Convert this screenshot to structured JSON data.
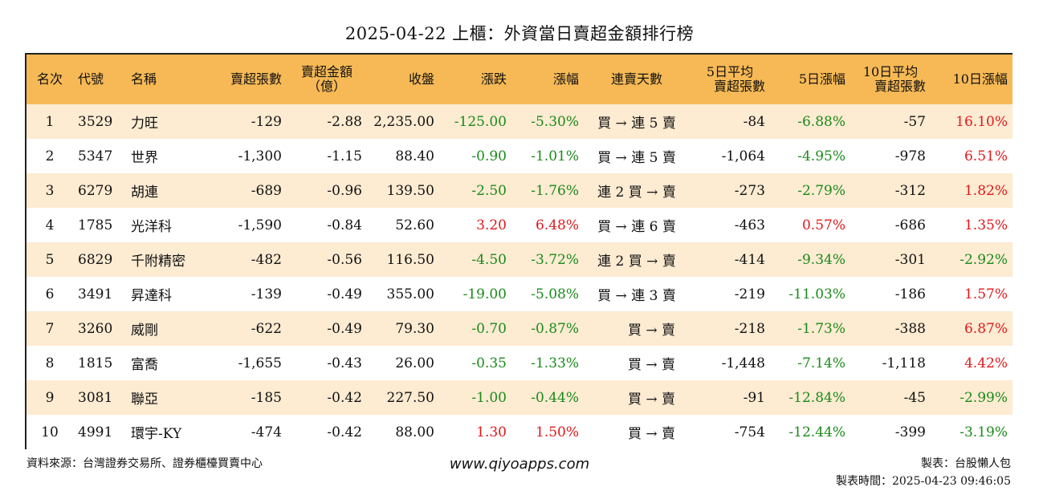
{
  "title": "2025-04-22 上櫃：外資當日賣超金額排行榜",
  "headers": {
    "rank": "名次",
    "code": "代號",
    "name": "名稱",
    "sell_lots": "賣超張數",
    "sell_amt_1": "賣超金額",
    "sell_amt_2": "（億）",
    "close": "收盤",
    "change": "漲跌",
    "pct": "漲幅",
    "streak": "連賣天數",
    "avg5_1": "5日平均",
    "avg5_2": "賣超張數",
    "pct5": "5日漲幅",
    "avg10_1": "10日平均",
    "avg10_2": "賣超張數",
    "pct10": "10日漲幅"
  },
  "rows": [
    {
      "rank": "1",
      "code": "3529",
      "name": "力旺",
      "sell_lots": "-129",
      "sell_amt": "-2.88",
      "close": "2,235.00",
      "change": "-125.00",
      "pct": "-5.30%",
      "streak": "買 → 連 5 賣",
      "avg5": "-84",
      "pct5": "-6.88%",
      "avg10": "-57",
      "pct10": "16.10%"
    },
    {
      "rank": "2",
      "code": "5347",
      "name": "世界",
      "sell_lots": "-1,300",
      "sell_amt": "-1.15",
      "close": "88.40",
      "change": "-0.90",
      "pct": "-1.01%",
      "streak": "買 → 連 5 賣",
      "avg5": "-1,064",
      "pct5": "-4.95%",
      "avg10": "-978",
      "pct10": "6.51%"
    },
    {
      "rank": "3",
      "code": "6279",
      "name": "胡連",
      "sell_lots": "-689",
      "sell_amt": "-0.96",
      "close": "139.50",
      "change": "-2.50",
      "pct": "-1.76%",
      "streak": "連 2 買 → 賣",
      "avg5": "-273",
      "pct5": "-2.79%",
      "avg10": "-312",
      "pct10": "1.82%"
    },
    {
      "rank": "4",
      "code": "1785",
      "name": "光洋科",
      "sell_lots": "-1,590",
      "sell_amt": "-0.84",
      "close": "52.60",
      "change": "3.20",
      "pct": "6.48%",
      "streak": "買 → 連 6 賣",
      "avg5": "-463",
      "pct5": "0.57%",
      "avg10": "-686",
      "pct10": "1.35%"
    },
    {
      "rank": "5",
      "code": "6829",
      "name": "千附精密",
      "sell_lots": "-482",
      "sell_amt": "-0.56",
      "close": "116.50",
      "change": "-4.50",
      "pct": "-3.72%",
      "streak": "連 2 買 → 賣",
      "avg5": "-414",
      "pct5": "-9.34%",
      "avg10": "-301",
      "pct10": "-2.92%"
    },
    {
      "rank": "6",
      "code": "3491",
      "name": "昇達科",
      "sell_lots": "-139",
      "sell_amt": "-0.49",
      "close": "355.00",
      "change": "-19.00",
      "pct": "-5.08%",
      "streak": "買 → 連 3 賣",
      "avg5": "-219",
      "pct5": "-11.03%",
      "avg10": "-186",
      "pct10": "1.57%"
    },
    {
      "rank": "7",
      "code": "3260",
      "name": "威剛",
      "sell_lots": "-622",
      "sell_amt": "-0.49",
      "close": "79.30",
      "change": "-0.70",
      "pct": "-0.87%",
      "streak": "買 → 賣",
      "avg5": "-218",
      "pct5": "-1.73%",
      "avg10": "-388",
      "pct10": "6.87%"
    },
    {
      "rank": "8",
      "code": "1815",
      "name": "富喬",
      "sell_lots": "-1,655",
      "sell_amt": "-0.43",
      "close": "26.00",
      "change": "-0.35",
      "pct": "-1.33%",
      "streak": "買 → 賣",
      "avg5": "-1,448",
      "pct5": "-7.14%",
      "avg10": "-1,118",
      "pct10": "4.42%"
    },
    {
      "rank": "9",
      "code": "3081",
      "name": "聯亞",
      "sell_lots": "-185",
      "sell_amt": "-0.42",
      "close": "227.50",
      "change": "-1.00",
      "pct": "-0.44%",
      "streak": "買 → 賣",
      "avg5": "-91",
      "pct5": "-12.84%",
      "avg10": "-45",
      "pct10": "-2.99%"
    },
    {
      "rank": "10",
      "code": "4991",
      "name": "環宇-KY",
      "sell_lots": "-474",
      "sell_amt": "-0.42",
      "close": "88.00",
      "change": "1.30",
      "pct": "1.50%",
      "streak": "買 → 賣",
      "avg5": "-754",
      "pct5": "-12.44%",
      "avg10": "-399",
      "pct10": "-3.19%"
    }
  ],
  "colors": {
    "up": "#e0181b",
    "down": "#1a8a1a",
    "header_bg": "#f7b955",
    "stripe": "#fdebd2"
  },
  "footer": {
    "source": "資料來源：台灣證券交易所、證券櫃檯買賣中心",
    "site": "www.qiyoapps.com",
    "maker": "製表：台股懶人包",
    "made_time": "製表時間：2025-04-23 09:46:05"
  }
}
